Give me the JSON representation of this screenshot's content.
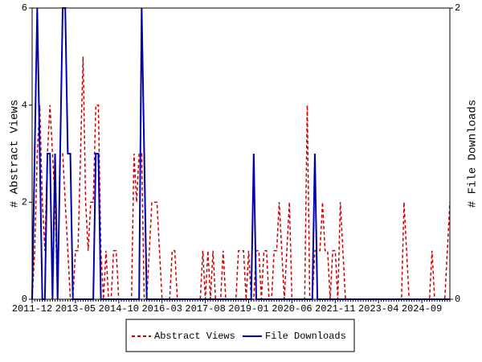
{
  "chart_data": {
    "type": "line",
    "categories": [
      "2011-12",
      null,
      null,
      null,
      null,
      null,
      null,
      null,
      null,
      null,
      null,
      null,
      null,
      null,
      null,
      null,
      null,
      "2013-05",
      null,
      null,
      null,
      null,
      null,
      null,
      null,
      null,
      null,
      null,
      null,
      null,
      null,
      null,
      null,
      null,
      "2014-10",
      null,
      null,
      null,
      null,
      null,
      null,
      null,
      null,
      null,
      null,
      null,
      null,
      null,
      null,
      null,
      null,
      "2016-03",
      null,
      null,
      null,
      null,
      null,
      null,
      null,
      null,
      null,
      null,
      null,
      null,
      null,
      null,
      null,
      null,
      "2017-08",
      null,
      null,
      null,
      null,
      null,
      null,
      null,
      null,
      null,
      null,
      null,
      null,
      null,
      null,
      null,
      null,
      "2019-01",
      null,
      null,
      null,
      null,
      null,
      null,
      null,
      null,
      null,
      null,
      null,
      null,
      null,
      null,
      null,
      null,
      "2020-06",
      null,
      null,
      null,
      null,
      null,
      null,
      null,
      null,
      null,
      null,
      null,
      null,
      null,
      null,
      null,
      null,
      "2021-11",
      null,
      null,
      null,
      null,
      null,
      null,
      null,
      null,
      null,
      null,
      null,
      null,
      null,
      null,
      null,
      null,
      "2023-04",
      null,
      null,
      null,
      null,
      null,
      null,
      null,
      null,
      null,
      null,
      null,
      null,
      null,
      null,
      null,
      null,
      "2024-09",
      null,
      null,
      null,
      null,
      null,
      null,
      null,
      null,
      null,
      null,
      null
    ],
    "ylabel": "# Abstract Views",
    "y2label": "# File Downloads",
    "ylim": [
      0,
      6
    ],
    "yticks": [
      0,
      2,
      4,
      6
    ],
    "y2lim": [
      0,
      2
    ],
    "y2ticks": [
      0,
      2
    ],
    "legend": "bottom",
    "series": [
      {
        "name": "Abstract Views",
        "color": "#cc0000",
        "dash": true,
        "values": [
          0,
          1,
          3,
          4,
          2,
          1,
          3,
          4,
          3,
          2,
          0,
          3,
          3,
          2,
          1,
          0,
          0,
          1,
          1,
          3,
          5,
          2,
          1,
          2,
          2,
          4,
          4,
          1,
          0,
          1,
          0,
          0,
          1,
          1,
          0,
          0,
          0,
          0,
          0,
          0,
          3,
          2,
          3,
          3,
          0,
          0,
          1,
          2,
          2,
          2,
          1,
          0,
          0,
          0,
          0,
          1,
          1,
          0,
          0,
          0,
          0,
          0,
          0,
          0,
          0,
          0,
          0,
          1,
          0,
          1,
          0,
          1,
          0,
          0,
          0,
          1,
          0,
          0,
          0,
          0,
          0,
          1,
          1,
          1,
          0,
          1,
          0,
          0,
          1,
          1,
          0,
          1,
          1,
          0,
          0,
          1,
          1,
          2,
          1,
          0,
          1,
          2,
          0,
          0,
          0,
          0,
          0,
          0,
          4,
          0,
          0,
          1,
          1,
          1,
          2,
          1,
          1,
          0,
          1,
          1,
          0,
          2,
          1,
          0,
          0,
          0,
          0,
          0,
          0,
          0,
          0,
          0,
          0,
          0,
          0,
          0,
          0,
          0,
          0,
          0,
          0,
          0,
          0,
          0,
          0,
          0,
          2,
          1,
          0,
          0,
          0,
          0,
          0,
          0,
          0,
          0,
          0,
          1,
          0,
          0,
          0,
          0,
          0,
          1,
          2
        ]
      },
      {
        "name": "File Downloads",
        "color": "#0000aa",
        "axis": "y2",
        "values": [
          0,
          1,
          2,
          1,
          0,
          0,
          1,
          1,
          0,
          1,
          0,
          1,
          2,
          2,
          1,
          1,
          0,
          0,
          0,
          0,
          0,
          0,
          0,
          0,
          0,
          1,
          1,
          0,
          0,
          0,
          0,
          0,
          0,
          0,
          0,
          0,
          0,
          0,
          0,
          0,
          0,
          0,
          0,
          2,
          1,
          0,
          0,
          0,
          0,
          0,
          0,
          0,
          0,
          0,
          0,
          0,
          0,
          0,
          0,
          0,
          0,
          0,
          0,
          0,
          0,
          0,
          0,
          0,
          0,
          0,
          0,
          0,
          0,
          0,
          0,
          0,
          0,
          0,
          0,
          0,
          0,
          0,
          0,
          0,
          0,
          0,
          0,
          1,
          0,
          0,
          0,
          0,
          0,
          0,
          0,
          0,
          0,
          0,
          0,
          0,
          0,
          0,
          0,
          0,
          0,
          0,
          0,
          0,
          0,
          0,
          0,
          1,
          0,
          0,
          0,
          0,
          0,
          0,
          0,
          0,
          0,
          0,
          0,
          0,
          0,
          0,
          0,
          0,
          0,
          0,
          0,
          0,
          0,
          0,
          0,
          0,
          0,
          0,
          0,
          0,
          0,
          0,
          0,
          0,
          0,
          0,
          0,
          0,
          0,
          0,
          0,
          0,
          0,
          0,
          0,
          0,
          0,
          0,
          0,
          0,
          0,
          0,
          0,
          0,
          0
        ]
      }
    ]
  }
}
